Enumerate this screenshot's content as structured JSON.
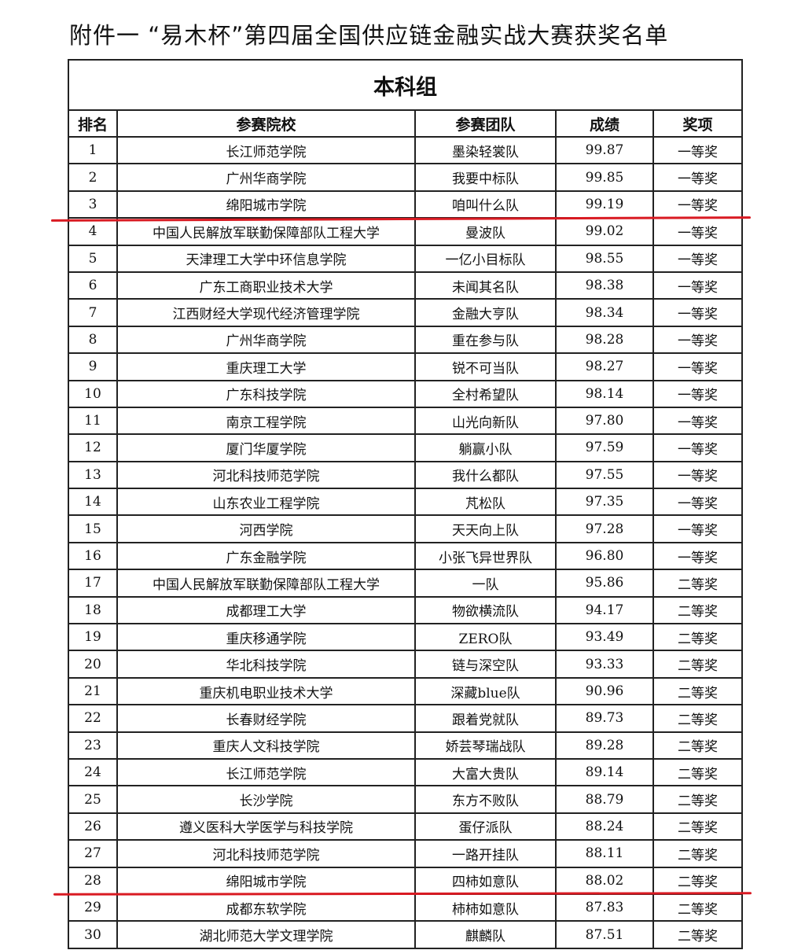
{
  "document": {
    "title": "附件一  “易木杯”第四届全国供应链金融实战大赛获奖名单",
    "group": "本科组",
    "highlight_color": "#d91a22",
    "columns": [
      "排名",
      "参赛院校",
      "参赛团队",
      "成绩",
      "奖项"
    ],
    "rows": [
      [
        "1",
        "长江师范学院",
        "墨染轻裳队",
        "99.87",
        "一等奖"
      ],
      [
        "2",
        "广州华商学院",
        "我要中标队",
        "99.85",
        "一等奖"
      ],
      [
        "3",
        "绵阳城市学院",
        "咱叫什么队",
        "99.19",
        "一等奖"
      ],
      [
        "4",
        "中国人民解放军联勤保障部队工程大学",
        "曼波队",
        "99.02",
        "一等奖"
      ],
      [
        "5",
        "天津理工大学中环信息学院",
        "一亿小目标队",
        "98.55",
        "一等奖"
      ],
      [
        "6",
        "广东工商职业技术大学",
        "未闻其名队",
        "98.38",
        "一等奖"
      ],
      [
        "7",
        "江西财经大学现代经济管理学院",
        "金融大亨队",
        "98.34",
        "一等奖"
      ],
      [
        "8",
        "广州华商学院",
        "重在参与队",
        "98.28",
        "一等奖"
      ],
      [
        "9",
        "重庆理工大学",
        "锐不可当队",
        "98.27",
        "一等奖"
      ],
      [
        "10",
        "广东科技学院",
        "全村希望队",
        "98.14",
        "一等奖"
      ],
      [
        "11",
        "南京工程学院",
        "山光向新队",
        "97.80",
        "一等奖"
      ],
      [
        "12",
        "厦门华厦学院",
        "躺赢小队",
        "97.59",
        "一等奖"
      ],
      [
        "13",
        "河北科技师范学院",
        "我什么都队",
        "97.55",
        "一等奖"
      ],
      [
        "14",
        "山东农业工程学院",
        "芃松队",
        "97.35",
        "一等奖"
      ],
      [
        "15",
        "河西学院",
        "天天向上队",
        "97.28",
        "一等奖"
      ],
      [
        "16",
        "广东金融学院",
        "小张飞异世界队",
        "96.80",
        "一等奖"
      ],
      [
        "17",
        "中国人民解放军联勤保障部队工程大学",
        "一队",
        "95.86",
        "二等奖"
      ],
      [
        "18",
        "成都理工大学",
        "物欲横流队",
        "94.17",
        "二等奖"
      ],
      [
        "19",
        "重庆移通学院",
        "ZERO队",
        "93.49",
        "二等奖"
      ],
      [
        "20",
        "华北科技学院",
        "链与深空队",
        "93.33",
        "二等奖"
      ],
      [
        "21",
        "重庆机电职业技术大学",
        "深藏blue队",
        "90.96",
        "二等奖"
      ],
      [
        "22",
        "长春财经学院",
        "跟着党就队",
        "89.73",
        "二等奖"
      ],
      [
        "23",
        "重庆人文科技学院",
        "娇芸琴瑞战队",
        "89.28",
        "二等奖"
      ],
      [
        "24",
        "长江师范学院",
        "大富大贵队",
        "89.14",
        "二等奖"
      ],
      [
        "25",
        "长沙学院",
        "东方不败队",
        "88.79",
        "二等奖"
      ],
      [
        "26",
        "遵义医科大学医学与科技学院",
        "蛋仔派队",
        "88.24",
        "二等奖"
      ],
      [
        "27",
        "河北科技师范学院",
        "一路开挂队",
        "88.11",
        "二等奖"
      ],
      [
        "28",
        "绵阳城市学院",
        "四柿如意队",
        "88.02",
        "二等奖"
      ],
      [
        "29",
        "成都东软学院",
        "柿柿如意队",
        "87.83",
        "二等奖"
      ],
      [
        "30",
        "湖北师范大学文理学院",
        "麒麟队",
        "87.51",
        "二等奖"
      ]
    ]
  }
}
